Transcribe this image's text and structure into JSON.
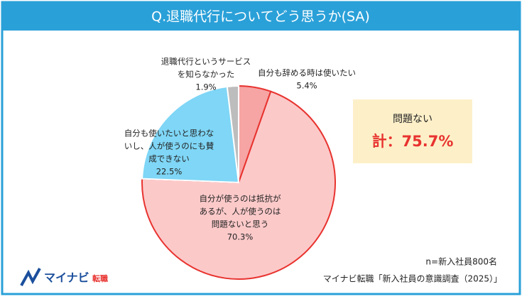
{
  "chart_data": {
    "type": "pie",
    "title": "Q.退職代行についてどう思うか(SA)",
    "labels": [
      [
        "自分も辞める時は使いたい"
      ],
      [
        "自分が使うのは抵抗が",
        "あるが、人が使うのは",
        "問題ないと思う"
      ],
      [
        "自分も使いたいと思わな",
        "いし、人が使うのにも賛",
        "成できない"
      ],
      [
        "退職代行というサービス",
        "を知らなかった"
      ]
    ],
    "values": [
      5.4,
      70.3,
      22.5,
      1.9
    ],
    "value_labels": [
      "5.4%",
      "70.3%",
      "22.5%",
      "1.9%"
    ],
    "colors": [
      "#f6a4a4",
      "#fcc9c9",
      "#7fd6f6",
      "#bdbdbd"
    ],
    "border_colors": [
      "#e8332f",
      "#e8332f",
      "#ffffff",
      "#ffffff"
    ]
  },
  "callout": {
    "title": "問題ない",
    "total": "計：75.7%"
  },
  "footer": {
    "sample": "n=新入社員800名",
    "source": "マイナビ転職「新入社員の意識調査（2025）」"
  },
  "logo": {
    "brand": "マイナビ",
    "sub": "転職"
  }
}
